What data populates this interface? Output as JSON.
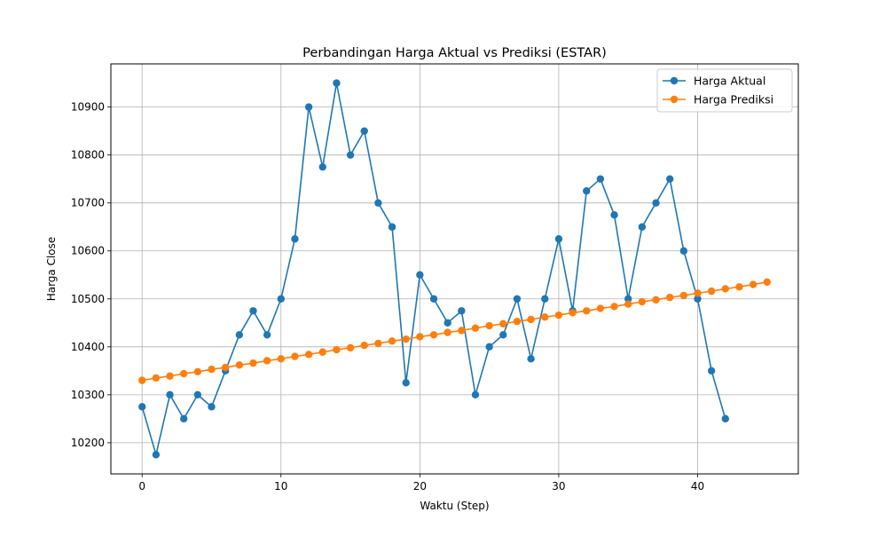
{
  "chart_data": {
    "type": "line",
    "title": "Perbandingan Harga Aktual vs Prediksi (ESTAR)",
    "xlabel": "Waktu (Step)",
    "ylabel": "Harga Close",
    "xlim": [
      -2.25,
      47.25
    ],
    "ylim": [
      10135,
      10990
    ],
    "x_ticks": [
      0,
      10,
      20,
      30,
      40
    ],
    "y_ticks": [
      10200,
      10300,
      10400,
      10500,
      10600,
      10700,
      10800,
      10900
    ],
    "grid": true,
    "legend_position": "top-right",
    "series": [
      {
        "name": "Harga Aktual",
        "color": "#1f77b4",
        "x": [
          0,
          1,
          2,
          3,
          4,
          5,
          6,
          7,
          8,
          9,
          10,
          11,
          12,
          13,
          14,
          15,
          16,
          17,
          18,
          19,
          20,
          21,
          22,
          23,
          24,
          25,
          26,
          27,
          28,
          29,
          30,
          31,
          32,
          33,
          34,
          35,
          36,
          37,
          38,
          39,
          40,
          41,
          42
        ],
        "values": [
          10275,
          10175,
          10300,
          10250,
          10300,
          10275,
          10350,
          10425,
          10475,
          10425,
          10500,
          10625,
          10900,
          10775,
          10950,
          10800,
          10850,
          10700,
          10650,
          10325,
          10550,
          10500,
          10450,
          10475,
          10300,
          10400,
          10425,
          10500,
          10375,
          10500,
          10625,
          10475,
          10725,
          10750,
          10675,
          10500,
          10650,
          10700,
          10750,
          10600,
          10500,
          10350,
          10250
        ]
      },
      {
        "name": "Harga Prediksi",
        "color": "#ff7f0e",
        "x": [
          0,
          1,
          2,
          3,
          4,
          5,
          6,
          7,
          8,
          9,
          10,
          11,
          12,
          13,
          14,
          15,
          16,
          17,
          18,
          19,
          20,
          21,
          22,
          23,
          24,
          25,
          26,
          27,
          28,
          29,
          30,
          31,
          32,
          33,
          34,
          35,
          36,
          37,
          38,
          39,
          40,
          41,
          42,
          43,
          44,
          45
        ],
        "values": [
          10330,
          10335,
          10339,
          10344,
          10348,
          10353,
          10357,
          10362,
          10366,
          10371,
          10375,
          10380,
          10384,
          10389,
          10394,
          10398,
          10403,
          10407,
          10412,
          10416,
          10421,
          10425,
          10430,
          10434,
          10439,
          10444,
          10448,
          10453,
          10457,
          10462,
          10466,
          10471,
          10475,
          10480,
          10484,
          10489,
          10494,
          10498,
          10503,
          10507,
          10512,
          10516,
          10521,
          10525,
          10530,
          10535
        ]
      }
    ]
  }
}
